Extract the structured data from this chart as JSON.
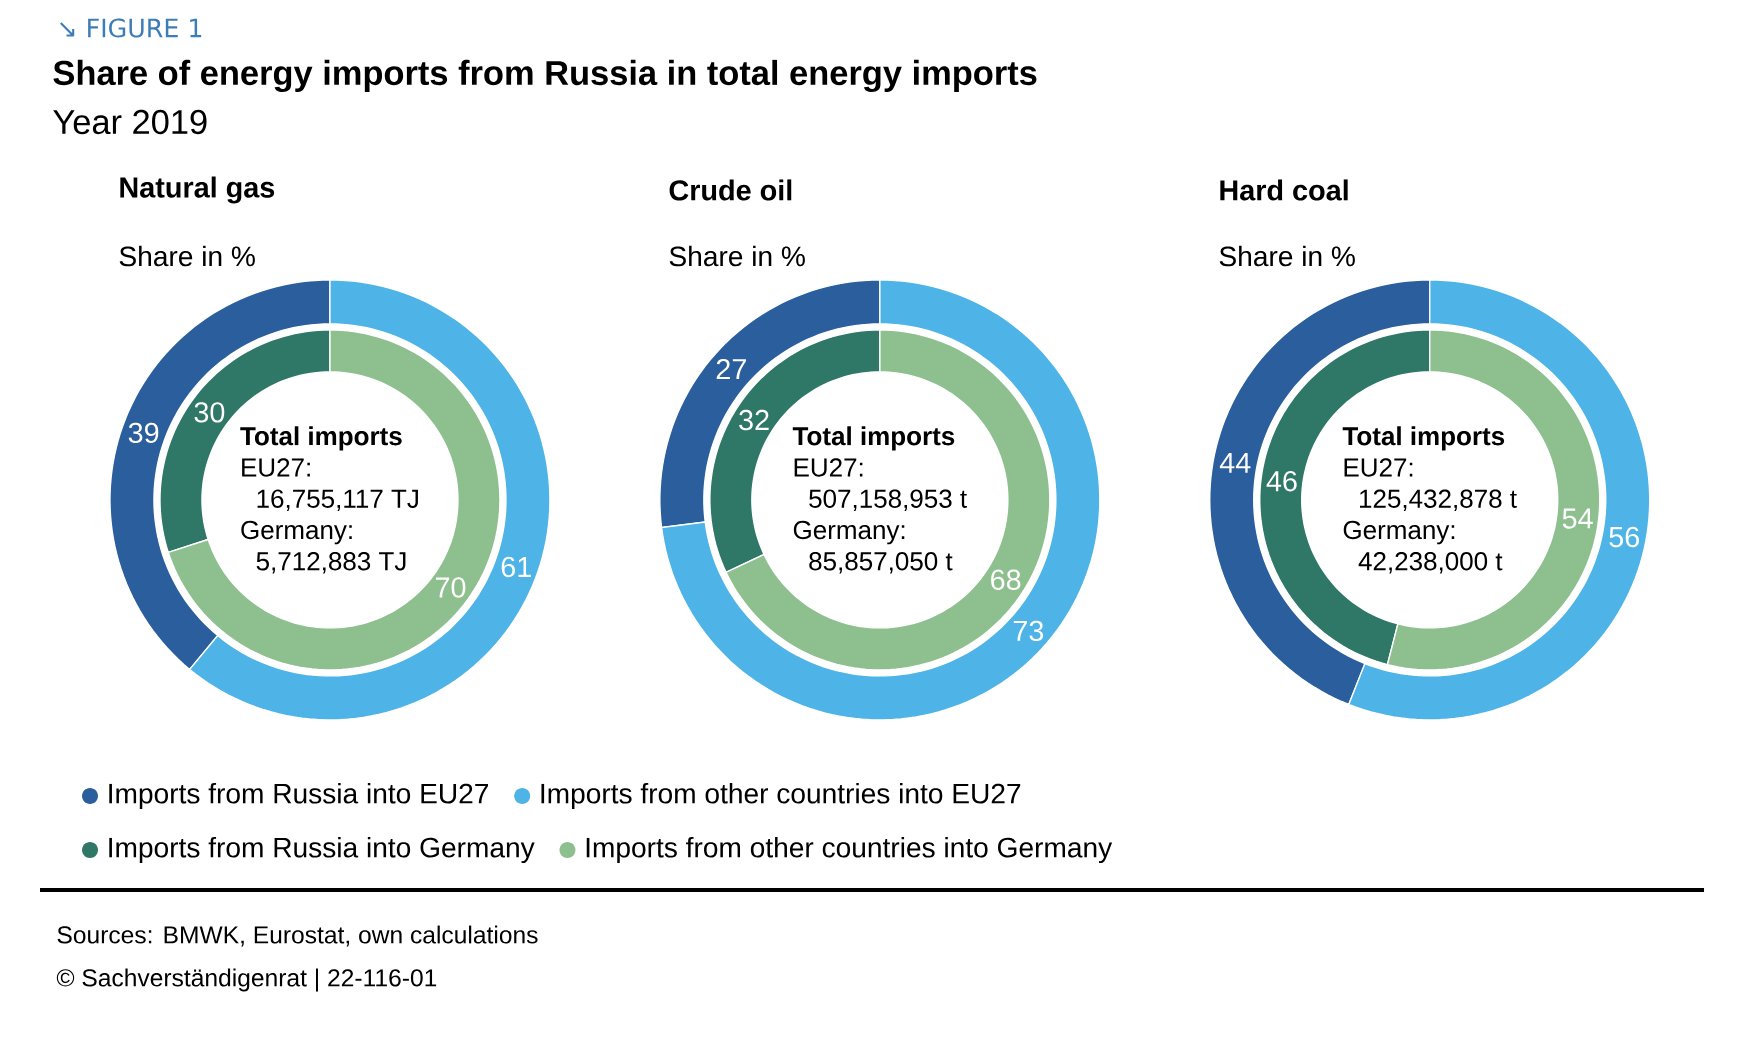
{
  "chart_data": [
    {
      "type": "other",
      "title": "Share of energy imports from Russia in total energy imports",
      "subtitle": "Year 2019",
      "annotations": [
        "↘ FIGURE 1",
        "Sources: BMWK, Eurostat, own calculations",
        "© Sachverständigenrat | 22-116-01"
      ]
    },
    {
      "type": "donut",
      "title": "Natural gas",
      "subtitle": "Share in %",
      "legend": "bottom",
      "data_labels": true,
      "categories": [
        "Imports from Russia into EU27",
        "Imports from other countries into EU27",
        "Imports from Russia into Germany",
        "Imports from other countries into Germany"
      ],
      "colors": [
        "#2a5e9c",
        "#4eb3e6",
        "#2f7868",
        "#8ec08f"
      ],
      "series": [
        {
          "values": [
            39,
            61,
            null,
            null
          ]
        },
        {
          "values": [
            null,
            null,
            30,
            70
          ]
        }
      ],
      "annotations": [
        "Total imports",
        "EU27:",
        "16,755,117 TJ",
        "Germany:",
        "5,712,883 TJ"
      ]
    },
    {
      "type": "donut",
      "title": "Crude oil",
      "subtitle": "Share in %",
      "data_labels": true,
      "categories": [
        null,
        null,
        null,
        null
      ],
      "colors": [
        "#2a5e9c",
        "#4eb3e6",
        "#2f7868",
        "#8ec08f"
      ],
      "series": [
        {
          "values": [
            27,
            73,
            null,
            null
          ]
        },
        {
          "values": [
            null,
            null,
            32,
            68
          ]
        }
      ],
      "annotations": [
        "Total imports",
        "EU27:",
        "507,158,953 t",
        "Germany:",
        "85,857,050 t"
      ]
    },
    {
      "type": "donut",
      "title": "Hard coal",
      "subtitle": "Share in %",
      "data_labels": true,
      "categories": [
        null,
        null,
        null,
        null
      ],
      "colors": [
        "#2a5e9c",
        "#4eb3e6",
        "#2f7868",
        "#8ec08f"
      ],
      "series": [
        {
          "values": [
            44,
            56,
            null,
            null
          ]
        },
        {
          "values": [
            null,
            null,
            46,
            54
          ]
        }
      ],
      "annotations": [
        "Total imports",
        "EU27:",
        "125,432,878 t",
        "Germany:",
        "42,238,000 t"
      ]
    }
  ]
}
